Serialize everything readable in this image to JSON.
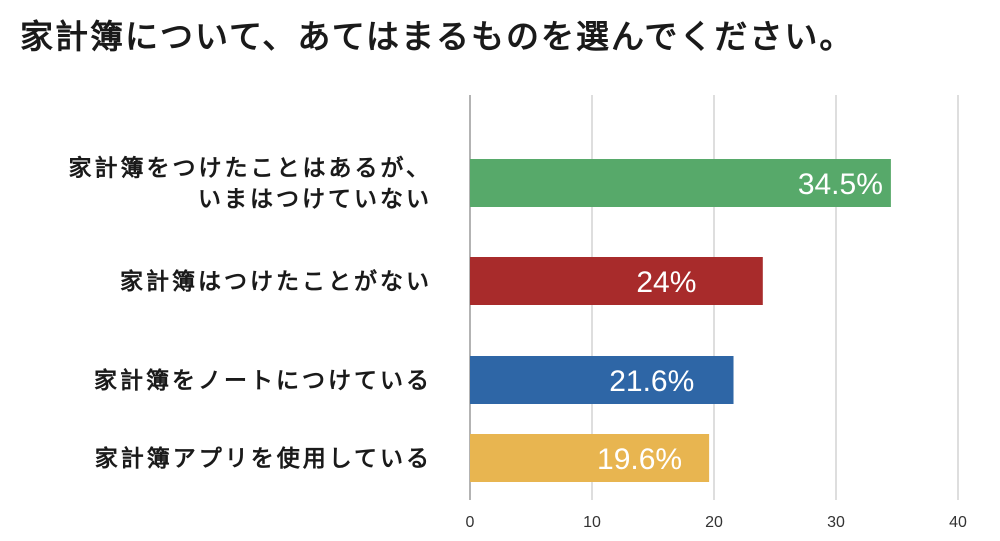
{
  "title": "家計簿について、あてはまるものを選んでください。",
  "chart_data": {
    "type": "bar",
    "orientation": "horizontal",
    "categories": [
      [
        "家計簿をつけたことはあるが、",
        "いまはつけていない"
      ],
      [
        "家計簿はつけたことがない"
      ],
      [
        "家計簿をノートにつけている"
      ],
      [
        "家計簿アプリを使用している"
      ]
    ],
    "values": [
      34.5,
      24,
      21.6,
      19.6
    ],
    "data_labels": [
      "34.5%",
      "24%",
      "21.6%",
      "19.6%"
    ],
    "colors": [
      "#57a96a",
      "#a82b2b",
      "#2e66a6",
      "#e8b550"
    ],
    "xlim": [
      0,
      40
    ],
    "xticks": [
      0,
      10,
      20,
      30,
      40
    ],
    "tick_labels": [
      "0",
      "10",
      "20",
      "30",
      "40"
    ],
    "grid": true,
    "xlabel": "",
    "ylabel": ""
  }
}
